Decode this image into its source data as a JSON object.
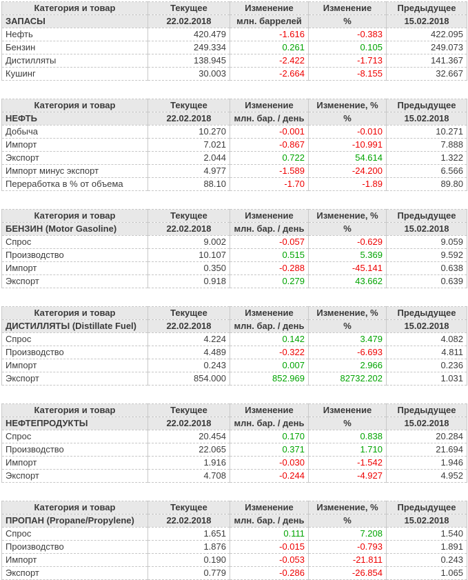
{
  "report": {
    "current_date": "22.02.2018",
    "previous_date": "15.02.2018"
  },
  "colors": {
    "positive": "#00a400",
    "negative": "#ee0000",
    "header_bg": "#e8e8e8",
    "border_vertical": "#c9c9c9",
    "border_horizontal": "#c6c6c6",
    "text": "#3c3c3c"
  },
  "tables": [
    {
      "headers": [
        "Категория и товар",
        "Текущее",
        "Изменение",
        "Изменение",
        "Предыдущее"
      ],
      "subheader": [
        "ЗАПАСЫ",
        "22.02.2018",
        "млн. баррелей",
        "%",
        "15.02.2018"
      ],
      "rows": [
        {
          "label": "Нефть",
          "current": "420.479",
          "change": "-1.616",
          "change_pct": "-0.383",
          "previous": "422.095"
        },
        {
          "label": "Бензин",
          "current": "249.334",
          "change": "0.261",
          "change_pct": "0.105",
          "previous": "249.073"
        },
        {
          "label": "Дистилляты",
          "current": "138.945",
          "change": "-2.422",
          "change_pct": "-1.713",
          "previous": "141.367"
        },
        {
          "label": "Кушинг",
          "current": "30.003",
          "change": "-2.664",
          "change_pct": "-8.155",
          "previous": "32.667"
        }
      ]
    },
    {
      "headers": [
        "Категория и товар",
        "Текущее",
        "Изменение",
        "Изменение, %",
        "Предыдущее"
      ],
      "subheader": [
        "НЕФТЬ",
        "22.02.2018",
        "млн. бар. / день",
        "%",
        "15.02.2018"
      ],
      "rows": [
        {
          "label": "Добыча",
          "current": "10.270",
          "change": "-0.001",
          "change_pct": "-0.010",
          "previous": "10.271"
        },
        {
          "label": "Импорт",
          "current": "7.021",
          "change": "-0.867",
          "change_pct": "-10.991",
          "previous": "7.888"
        },
        {
          "label": "Экспорт",
          "current": "2.044",
          "change": "0.722",
          "change_pct": "54.614",
          "previous": "1.322"
        },
        {
          "label": "Импорт минус экспорт",
          "current": "4.977",
          "change": "-1.589",
          "change_pct": "-24.200",
          "previous": "6.566"
        },
        {
          "label": "Переработка в % от объема",
          "current": "88.10",
          "change": "-1.70",
          "change_pct": "-1.89",
          "previous": "89.80"
        }
      ]
    },
    {
      "headers": [
        "Категория и товар",
        "Текущее",
        "Изменение",
        "Изменение, %",
        "Предыдущее"
      ],
      "subheader": [
        "БЕНЗИН (Motor Gasoline)",
        "22.02.2018",
        "млн. бар. / день",
        "%",
        "15.02.2018"
      ],
      "rows": [
        {
          "label": "Спрос",
          "current": "9.002",
          "change": "-0.057",
          "change_pct": "-0.629",
          "previous": "9.059"
        },
        {
          "label": "Производство",
          "current": "10.107",
          "change": "0.515",
          "change_pct": "5.369",
          "previous": "9.592"
        },
        {
          "label": "Импорт",
          "current": "0.350",
          "change": "-0.288",
          "change_pct": "-45.141",
          "previous": "0.638"
        },
        {
          "label": "Экспорт",
          "current": "0.918",
          "change": "0.279",
          "change_pct": "43.662",
          "previous": "0.639"
        }
      ]
    },
    {
      "headers": [
        "Категория и товар",
        "Текущее",
        "Изменение",
        "Изменение, %",
        "Предыдущее"
      ],
      "subheader": [
        "ДИСТИЛЛЯТЫ (Distillate Fuel)",
        "22.02.2018",
        "млн. бар. / день",
        "%",
        "15.02.2018"
      ],
      "rows": [
        {
          "label": "Спрос",
          "current": "4.224",
          "change": "0.142",
          "change_pct": "3.479",
          "previous": "4.082"
        },
        {
          "label": "Производство",
          "current": "4.489",
          "change": "-0.322",
          "change_pct": "-6.693",
          "previous": "4.811"
        },
        {
          "label": "Импорт",
          "current": "0.243",
          "change": "0.007",
          "change_pct": "2.966",
          "previous": "0.236"
        },
        {
          "label": "Экспорт",
          "current": "854.000",
          "change": "852.969",
          "change_pct": "82732.202",
          "previous": "1.031"
        }
      ]
    },
    {
      "headers": [
        "Категория и товар",
        "Текущее",
        "Изменение",
        "Изменение",
        "Предыдущее"
      ],
      "subheader": [
        "НЕФТЕПРОДУКТЫ",
        "22.02.2018",
        "млн. бар. / день",
        "%",
        "15.02.2018"
      ],
      "rows": [
        {
          "label": "Спрос",
          "current": "20.454",
          "change": "0.170",
          "change_pct": "0.838",
          "previous": "20.284"
        },
        {
          "label": "Производство",
          "current": "22.065",
          "change": "0.371",
          "change_pct": "1.710",
          "previous": "21.694"
        },
        {
          "label": "Импорт",
          "current": "1.916",
          "change": "-0.030",
          "change_pct": "-1.542",
          "previous": "1.946"
        },
        {
          "label": "Экспорт",
          "current": "4.708",
          "change": "-0.244",
          "change_pct": "-4.927",
          "previous": "4.952"
        }
      ]
    },
    {
      "headers": [
        "Категория и товар",
        "Текущее",
        "Изменение",
        "Изменение, %",
        "Предыдущее"
      ],
      "subheader": [
        "ПРОПАН (Propane/Propylene)",
        "22.02.2018",
        "млн. бар. / день",
        "%",
        "15.02.2018"
      ],
      "rows": [
        {
          "label": "Спрос",
          "current": "1.651",
          "change": "0.111",
          "change_pct": "7.208",
          "previous": "1.540"
        },
        {
          "label": "Производство",
          "current": "1.876",
          "change": "-0.015",
          "change_pct": "-0.793",
          "previous": "1.891"
        },
        {
          "label": "Импорт",
          "current": "0.190",
          "change": "-0.053",
          "change_pct": "-21.811",
          "previous": "0.243"
        },
        {
          "label": "Экспорт",
          "current": "0.779",
          "change": "-0.286",
          "change_pct": "-26.854",
          "previous": "1.065"
        }
      ]
    }
  ]
}
